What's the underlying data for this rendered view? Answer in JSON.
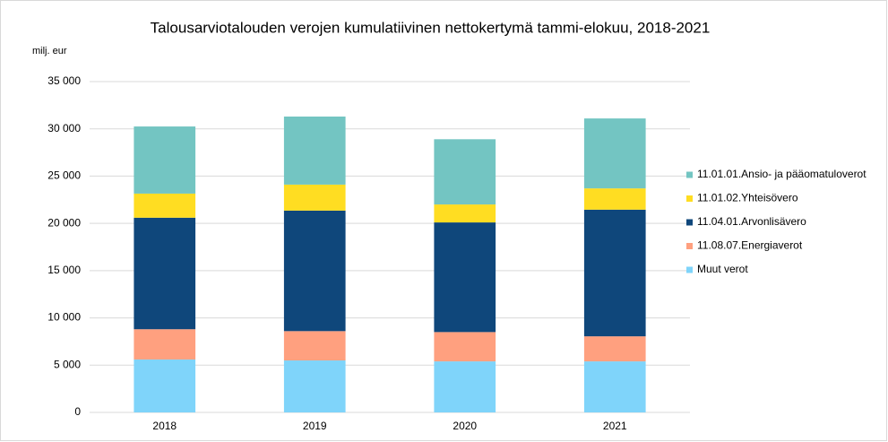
{
  "chart_data": {
    "type": "stacked_bar",
    "title": "Talousarviotalouden verojen kumulatiivinen nettokertymä tammi-elokuu, 2018-2021",
    "y_label": "milj. eur",
    "categories": [
      "2018",
      "2019",
      "2020",
      "2021"
    ],
    "series": [
      {
        "name": "Muut verot",
        "color": "#7fd4fa",
        "values": [
          5600,
          5500,
          5400,
          5400
        ]
      },
      {
        "name": "11.08.07.Energiaverot",
        "color": "#ffa07f",
        "values": [
          3200,
          3100,
          3100,
          2650
        ]
      },
      {
        "name": "11.04.01.Arvonlisävero",
        "color": "#0f477b",
        "values": [
          11800,
          12750,
          11600,
          13400
        ]
      },
      {
        "name": "11.01.02.Yhteisövero",
        "color": "#ffdd22",
        "values": [
          2550,
          2750,
          1900,
          2250
        ]
      },
      {
        "name": "11.01.01.Ansio- ja pääomatuloverot",
        "color": "#73c5c2",
        "values": [
          7100,
          7200,
          6900,
          7400
        ]
      }
    ],
    "ylim": [
      0,
      35000
    ],
    "yticks": [
      0,
      {
        "value": 5000,
        "label": "5 000"
      },
      {
        "value": 10000,
        "label": "10 000"
      },
      {
        "value": 15000,
        "label": "15 000"
      },
      {
        "value": 20000,
        "label": "20 000"
      },
      {
        "value": 25000,
        "label": "25 000"
      },
      {
        "value": 30000,
        "label": "30 000"
      },
      {
        "value": 35000,
        "label": "35 000"
      }
    ],
    "grid": true,
    "legend": "right"
  }
}
